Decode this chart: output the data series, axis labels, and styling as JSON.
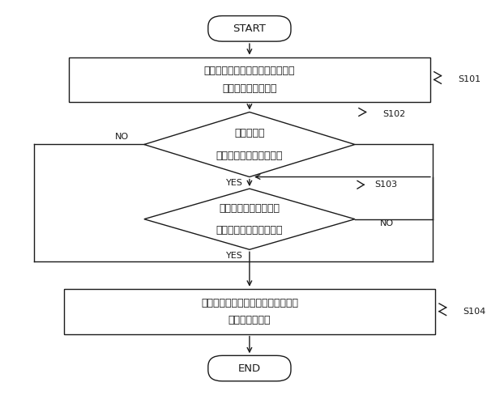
{
  "bg_color": "#ffffff",
  "line_color": "#1a1a1a",
  "text_color": "#1a1a1a",
  "font_size": 9.5,
  "start_label": "START",
  "end_label": "END",
  "box1_line1": "無線端末のためのベアラの設定を",
  "box1_line2": "第２の無線局に要求",
  "diamond1_line1": "肯定応答を",
  "diamond1_line2": "第２の無線局から受信？",
  "diamond2_line1": "ベアラ設定完了通知を",
  "diamond2_line2": "第２の無線局から受信？",
  "box2_line1": "第２のセルの使用開始を示す信号を",
  "box2_line2": "無線端末に送信",
  "s101": "S101",
  "s102": "S102",
  "s103": "S103",
  "s104": "S104",
  "yes_label": "YES",
  "no_label": "NO",
  "figw": 6.22,
  "figh": 4.88,
  "dpi": 100
}
